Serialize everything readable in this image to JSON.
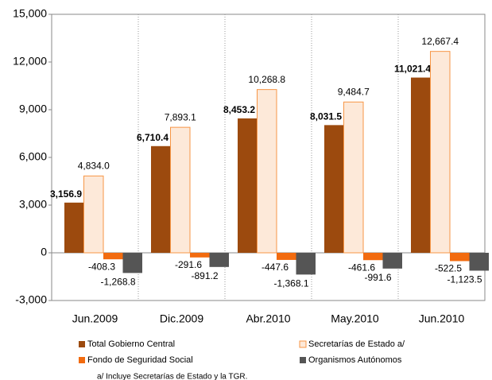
{
  "chart_data": {
    "type": "bar",
    "categories": [
      "Jun.2009",
      "Dic.2009",
      "Abr.2010",
      "May.2010",
      "Jun.2010"
    ],
    "series": [
      {
        "name": "Total Gobierno Central",
        "color": "#9c4a0e",
        "values": [
          3156.9,
          6710.4,
          8453.2,
          8031.5,
          11021.4
        ],
        "value_labels": [
          "3,156.9",
          "6,710.4",
          "8,453.2",
          "8,031.5",
          "11,021.4"
        ]
      },
      {
        "name": "Secretarías de Estado a/",
        "color": "#fde9d9",
        "values": [
          4834.0,
          7893.1,
          10268.8,
          9484.7,
          12667.4
        ],
        "value_labels": [
          "4,834.0",
          "7,893.1",
          "10,268.8",
          "9,484.7",
          "12,667.4"
        ]
      },
      {
        "name": "Fondo de Seguridad Social",
        "color": "#f26b0f",
        "values": [
          -408.3,
          -291.6,
          -447.6,
          -461.6,
          -522.5
        ],
        "value_labels": [
          "-408.3",
          "-291.6",
          "-447.6",
          "-461.6",
          "-522.5"
        ]
      },
      {
        "name": "Organismos Autónomos",
        "color": "#555555",
        "values": [
          -1268.8,
          -891.2,
          -1368.1,
          -991.6,
          -1123.5
        ],
        "value_labels": [
          "-1,268.8",
          "-891.2",
          "-1,368.1",
          "-991.6",
          "-1,123.5"
        ]
      }
    ],
    "ylim": [
      -3000,
      15000
    ],
    "yticks": [
      {
        "value": -3000,
        "label": "-3,000"
      },
      0,
      {
        "value": 3000,
        "label": "3,000"
      },
      {
        "value": 6000,
        "label": "6,000"
      },
      {
        "value": 9000,
        "label": "9,000"
      },
      {
        "value": 12000,
        "label": "12,000"
      },
      {
        "value": 15000,
        "label": "15,000"
      }
    ],
    "grid": false,
    "footnote": "a/ Incluye Secretarías de Estado y la TGR."
  }
}
